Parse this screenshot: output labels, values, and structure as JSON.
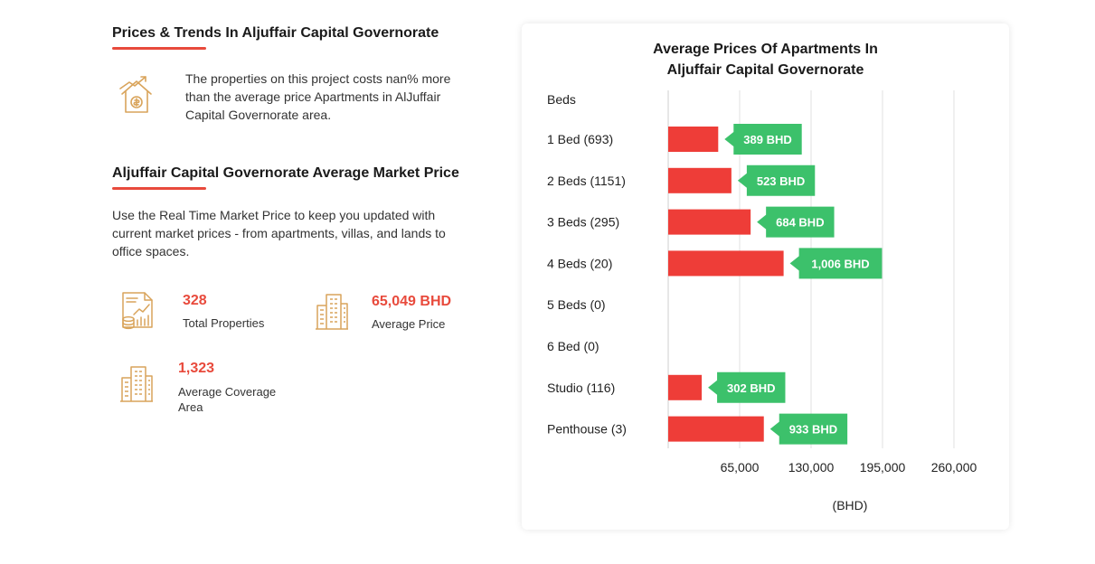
{
  "trends": {
    "title": "Prices & Trends In Aljuffair Capital Governorate",
    "text": "The properties on this project costs nan% more than the average price Apartments in AlJuffair Capital Governorate area.",
    "icon": "house-price-trend-icon"
  },
  "market": {
    "title": "Aljuffair Capital Governorate Average Market Price",
    "text": "Use the Real Time Market Price to keep you updated with current market prices - from apartments, villas, and lands to office spaces.",
    "stats": [
      {
        "value": "328",
        "label": "Total Properties",
        "icon": "document-chart-icon"
      },
      {
        "value": "65,049 BHD",
        "label": "Average Price",
        "icon": "buildings-icon"
      },
      {
        "value": "1,323",
        "label": "Average Coverage Area",
        "icon": "buildings-icon"
      }
    ]
  },
  "colors": {
    "accent": "#e84a3c",
    "bar": "#ee3d38",
    "label_bg": "#3cc16b",
    "icon": "#d9a45b"
  },
  "chart_data": {
    "type": "bar",
    "orientation": "horizontal",
    "title_lines": [
      "Average Prices Of Apartments In",
      "Aljuffair Capital Governorate"
    ],
    "ylabel": "Beds",
    "xlabel": "(BHD)",
    "categories": [
      "1 Bed (693)",
      "2 Beds (1151)",
      "3 Beds (295)",
      "4 Beds (20)",
      "5 Beds (0)",
      "6 Bed (0)",
      "Studio (116)",
      "Penthouse (3)"
    ],
    "values": [
      45500,
      57500,
      75000,
      105000,
      0,
      0,
      30500,
      87000
    ],
    "value_labels": [
      "389 BHD",
      "523 BHD",
      "684 BHD",
      "1,006 BHD",
      "",
      "",
      "302 BHD",
      "933 BHD"
    ],
    "xticks": [
      65000,
      130000,
      195000,
      260000
    ],
    "xtick_labels": [
      "65,000",
      "130,000",
      "195,000",
      "260,000"
    ],
    "xlim": [
      0,
      260000
    ],
    "grid": true,
    "legend": "none"
  }
}
